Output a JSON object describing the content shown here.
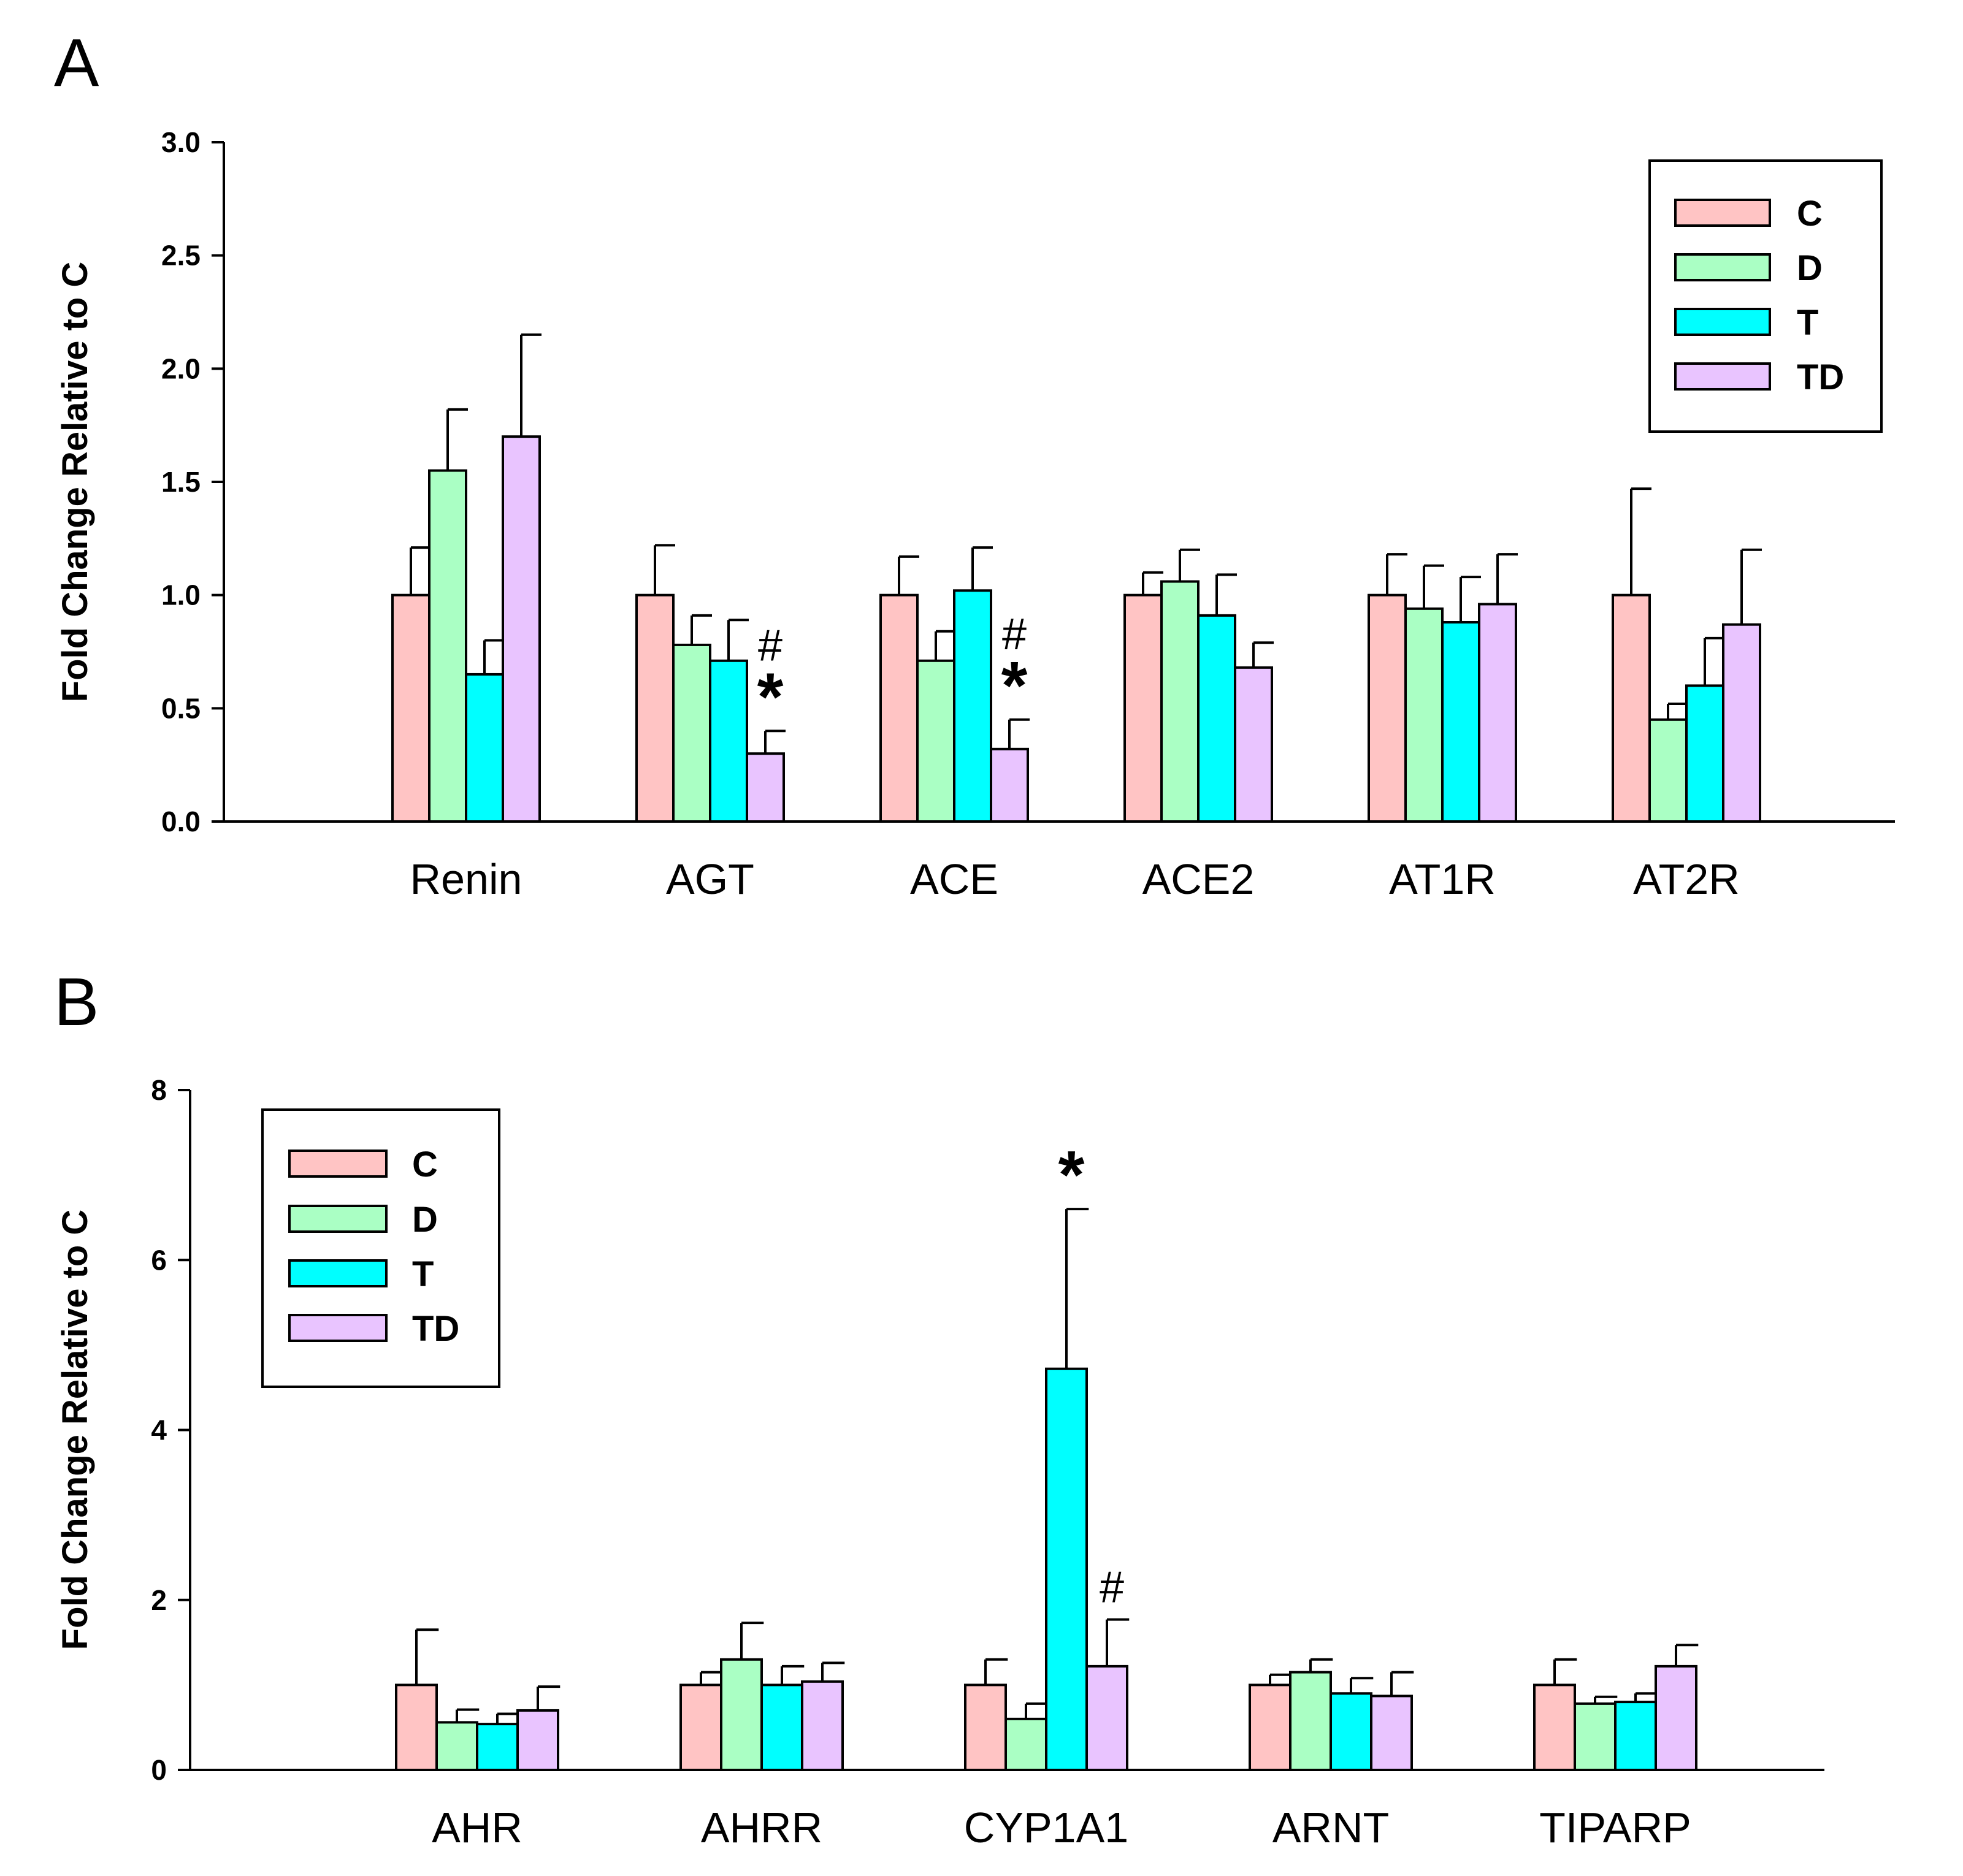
{
  "chart_data": [
    {
      "panel": "A",
      "type": "bar",
      "ylabel": "Fold Change Relative to C",
      "xlabel": "",
      "ylim": [
        0,
        3.0
      ],
      "yticks": [
        "0.0",
        "0.5",
        "1.0",
        "1.5",
        "2.0",
        "2.5",
        "3.0"
      ],
      "categories": [
        "Renin",
        "AGT",
        "ACE",
        "ACE2",
        "AT1R",
        "AT2R"
      ],
      "legend_position": "top-right",
      "series": [
        {
          "name": "C",
          "color": "#FFC4C4",
          "values": [
            1.0,
            1.0,
            1.0,
            1.0,
            1.0,
            1.0
          ],
          "errors": [
            0.21,
            0.22,
            0.17,
            0.1,
            0.18,
            0.47
          ]
        },
        {
          "name": "D",
          "color": "#AAFFC4",
          "values": [
            1.55,
            0.78,
            0.71,
            1.06,
            0.94,
            0.45
          ],
          "errors": [
            0.27,
            0.13,
            0.13,
            0.14,
            0.19,
            0.07
          ]
        },
        {
          "name": "T",
          "color": "#00FFFF",
          "values": [
            0.65,
            0.71,
            1.02,
            0.91,
            0.88,
            0.6
          ],
          "errors": [
            0.15,
            0.18,
            0.19,
            0.18,
            0.2,
            0.21
          ]
        },
        {
          "name": "TD",
          "color": "#E9C4FF",
          "values": [
            1.7,
            0.3,
            0.32,
            0.68,
            0.96,
            0.87
          ],
          "errors": [
            0.45,
            0.1,
            0.13,
            0.11,
            0.22,
            0.33
          ]
        }
      ],
      "annotations": [
        {
          "category": "AGT",
          "series": "TD",
          "star": "*",
          "hash": "#"
        },
        {
          "category": "ACE",
          "series": "TD",
          "star": "*",
          "hash": "#"
        }
      ]
    },
    {
      "panel": "B",
      "type": "bar",
      "ylabel": "Fold Change Relative to C",
      "xlabel": "",
      "ylim": [
        0,
        8
      ],
      "yticks": [
        "0",
        "2",
        "4",
        "6",
        "8"
      ],
      "categories": [
        "AHR",
        "AHRR",
        "CYP1A1",
        "ARNT",
        "TIPARP"
      ],
      "legend_position": "top-left",
      "series": [
        {
          "name": "C",
          "color": "#FFC4C4",
          "values": [
            1.0,
            1.0,
            1.0,
            1.0,
            1.0
          ],
          "errors": [
            0.65,
            0.15,
            0.3,
            0.12,
            0.3
          ]
        },
        {
          "name": "D",
          "color": "#AAFFC4",
          "values": [
            0.56,
            1.3,
            0.6,
            1.15,
            0.78
          ],
          "errors": [
            0.15,
            0.43,
            0.18,
            0.15,
            0.08
          ]
        },
        {
          "name": "T",
          "color": "#00FFFF",
          "values": [
            0.54,
            1.0,
            4.72,
            0.9,
            0.8
          ],
          "errors": [
            0.12,
            0.22,
            1.88,
            0.18,
            0.1
          ]
        },
        {
          "name": "TD",
          "color": "#E9C4FF",
          "values": [
            0.7,
            1.04,
            1.22,
            0.87,
            1.22
          ],
          "errors": [
            0.28,
            0.22,
            0.55,
            0.28,
            0.25
          ]
        }
      ],
      "annotations": [
        {
          "category": "CYP1A1",
          "series": "T",
          "star": "*"
        },
        {
          "category": "CYP1A1",
          "series": "TD",
          "hash": "#"
        }
      ]
    }
  ]
}
